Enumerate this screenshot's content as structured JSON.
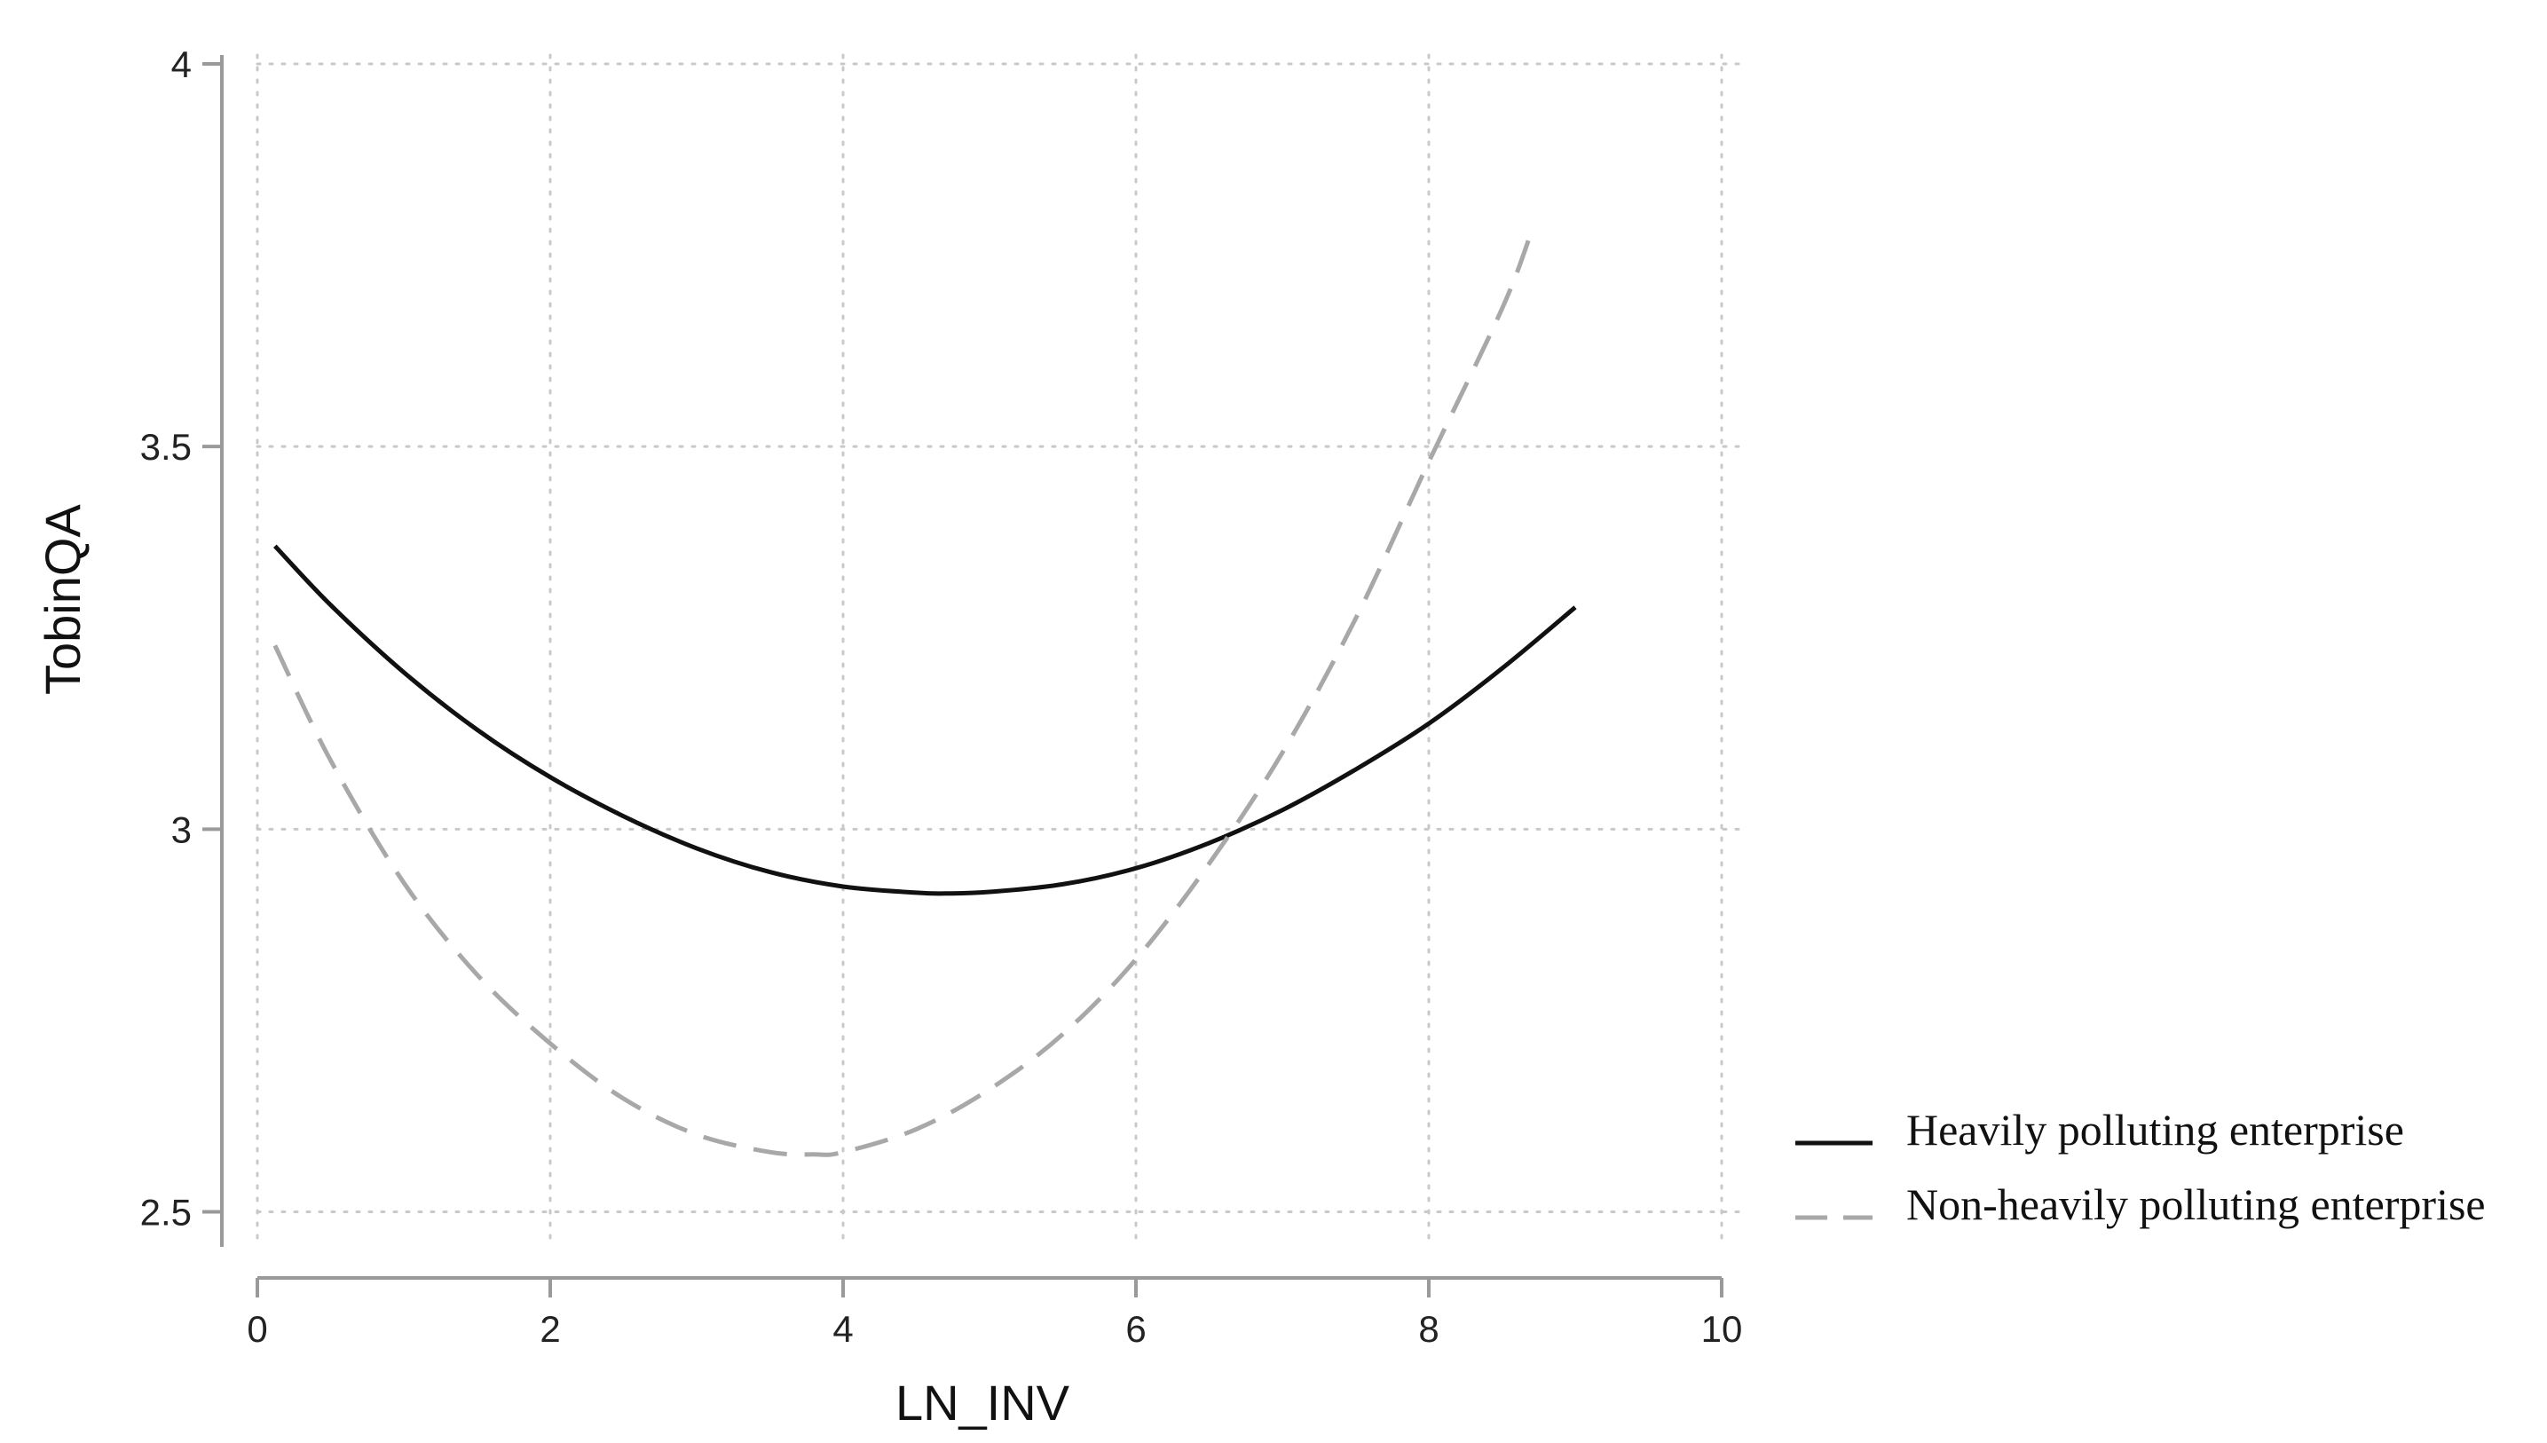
{
  "chart_data": {
    "type": "line",
    "title": "",
    "xlabel": "LN_INV",
    "ylabel": "TobinQA",
    "xlim": [
      0,
      10
    ],
    "ylim": [
      2.46,
      4.0
    ],
    "x_ticks": [
      0,
      2,
      4,
      6,
      8,
      10
    ],
    "y_ticks": [
      2.5,
      3,
      3.5,
      4
    ],
    "x_tick_labels": [
      "0",
      "2",
      "4",
      "6",
      "8",
      "10"
    ],
    "y_tick_labels": [
      "2.5",
      "3",
      "3.5",
      "4"
    ],
    "grid": true,
    "legend_position": "bottom-right",
    "series": [
      {
        "name": "Heavily polluting enterprise",
        "color": "#111111",
        "style": "solid",
        "x": [
          0.12,
          0.5,
          1.0,
          1.5,
          2.0,
          2.5,
          3.0,
          3.5,
          4.0,
          4.5,
          4.7,
          5.0,
          5.5,
          6.0,
          6.5,
          7.0,
          7.5,
          8.0,
          8.5,
          9.0
        ],
        "y": [
          3.37,
          3.293,
          3.205,
          3.13,
          3.068,
          3.017,
          2.975,
          2.944,
          2.925,
          2.917,
          2.916,
          2.918,
          2.928,
          2.949,
          2.982,
          3.025,
          3.078,
          3.138,
          3.21,
          3.29
        ]
      },
      {
        "name": "Non-heavily polluting enterprise",
        "color": "#a8a8a8",
        "style": "dashed",
        "x": [
          0.12,
          0.5,
          1.0,
          1.5,
          2.0,
          2.5,
          3.0,
          3.5,
          3.8,
          4.0,
          4.5,
          5.0,
          5.5,
          6.0,
          6.5,
          7.0,
          7.5,
          8.0,
          8.5,
          8.7
        ],
        "y": [
          3.24,
          3.09,
          2.93,
          2.81,
          2.72,
          2.648,
          2.601,
          2.578,
          2.575,
          2.578,
          2.608,
          2.66,
          2.732,
          2.83,
          2.955,
          3.1,
          3.275,
          3.48,
          3.68,
          3.78
        ]
      }
    ]
  }
}
